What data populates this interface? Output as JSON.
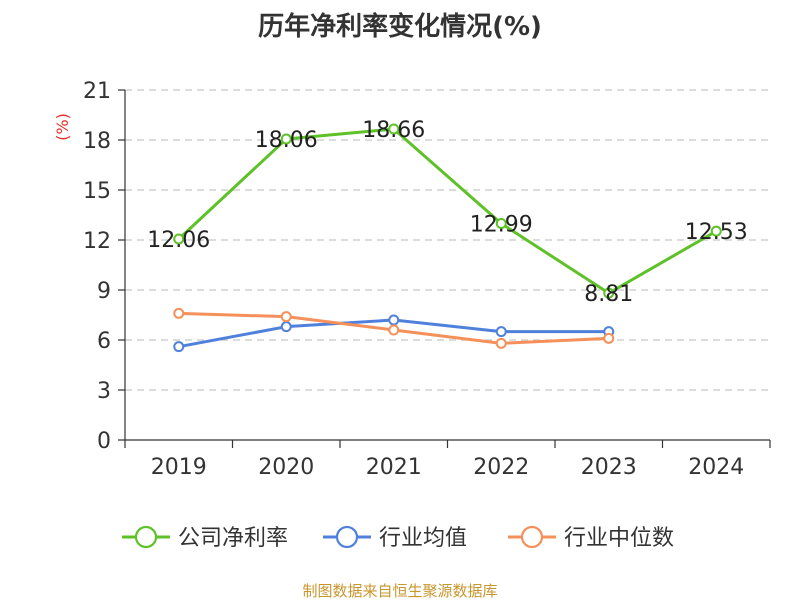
{
  "title": "历年净利率变化情况(%)",
  "source": "制图数据来自恒生聚源数据库",
  "chart_data": {
    "type": "line",
    "title": "历年净利率变化情况(%)",
    "ylabel": "(%)",
    "xlabel": "",
    "categories": [
      "2019",
      "2020",
      "2021",
      "2022",
      "2023",
      "2024"
    ],
    "ylim": [
      0,
      21
    ],
    "yticks": [
      0,
      3,
      6,
      9,
      12,
      15,
      18,
      21
    ],
    "grid": true,
    "legend_position": "bottom",
    "series": [
      {
        "name": "公司净利率",
        "color": "#5ec127",
        "values": [
          12.06,
          18.06,
          18.66,
          12.99,
          8.81,
          12.53
        ],
        "labels": [
          "12.06",
          "18.06",
          "18.66",
          "12.99",
          "8.81",
          "12.53"
        ]
      },
      {
        "name": "行业均值",
        "color": "#4f81dc",
        "values": [
          5.6,
          6.8,
          7.2,
          6.5,
          6.5,
          null
        ]
      },
      {
        "name": "行业中位数",
        "color": "#f5905a",
        "values": [
          7.6,
          7.4,
          6.6,
          5.8,
          6.1,
          null
        ]
      }
    ]
  }
}
